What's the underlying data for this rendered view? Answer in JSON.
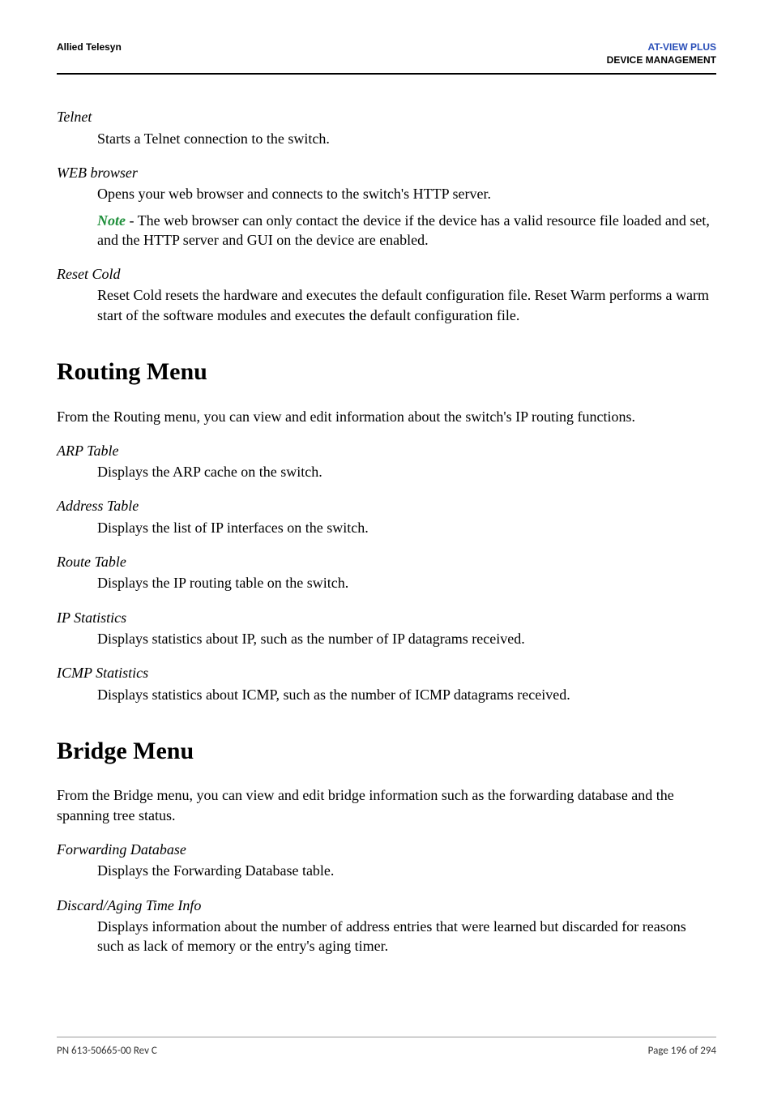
{
  "header": {
    "left": "Allied Telesyn",
    "right_product": "AT-VIEW PLUS",
    "right_subtitle": "DEVICE MANAGEMENT"
  },
  "items": [
    {
      "term": "Telnet",
      "descs": [
        "Starts a Telnet connection to the switch."
      ]
    },
    {
      "term": "WEB browser",
      "descs": [
        "Opens your web browser and connects to the switch's HTTP server.",
        "__NOTE__ - The web browser can only contact the device if the device has a valid resource file loaded and set, and the HTTP server and GUI on the device are enabled."
      ],
      "note_label": "Note"
    },
    {
      "term": "Reset Cold",
      "descs": [
        "Reset Cold resets the hardware and executes the default configuration file. Reset Warm performs a warm start of the software modules and executes the default configuration file."
      ]
    }
  ],
  "section1": {
    "title": "Routing Menu",
    "intro": "From the Routing menu, you can view and edit information about the switch's IP routing functions.",
    "items": [
      {
        "term": "ARP Table",
        "desc": "Displays the ARP cache on the switch."
      },
      {
        "term": "Address Table",
        "desc": "Displays the list of IP interfaces on the switch."
      },
      {
        "term": "Route Table",
        "desc": "Displays the IP routing table on the switch."
      },
      {
        "term": "IP Statistics",
        "desc": "Displays statistics about IP, such as the number of IP datagrams received."
      },
      {
        "term": "ICMP Statistics",
        "desc": "Displays statistics about ICMP, such as the number of ICMP datagrams received."
      }
    ]
  },
  "section2": {
    "title": "Bridge Menu",
    "intro": "From the Bridge menu, you can view and edit bridge information such as the forwarding database and the spanning tree status.",
    "items": [
      {
        "term": "Forwarding Database",
        "desc": "Displays the Forwarding Database table."
      },
      {
        "term": "Discard/Aging Time Info",
        "desc": "Displays information about the number of address entries that were learned but discarded for reasons such as lack of memory or the entry's aging timer."
      }
    ]
  },
  "footer": {
    "left": "PN 613-50665-00 Rev C",
    "right": "Page 196 of 294"
  }
}
